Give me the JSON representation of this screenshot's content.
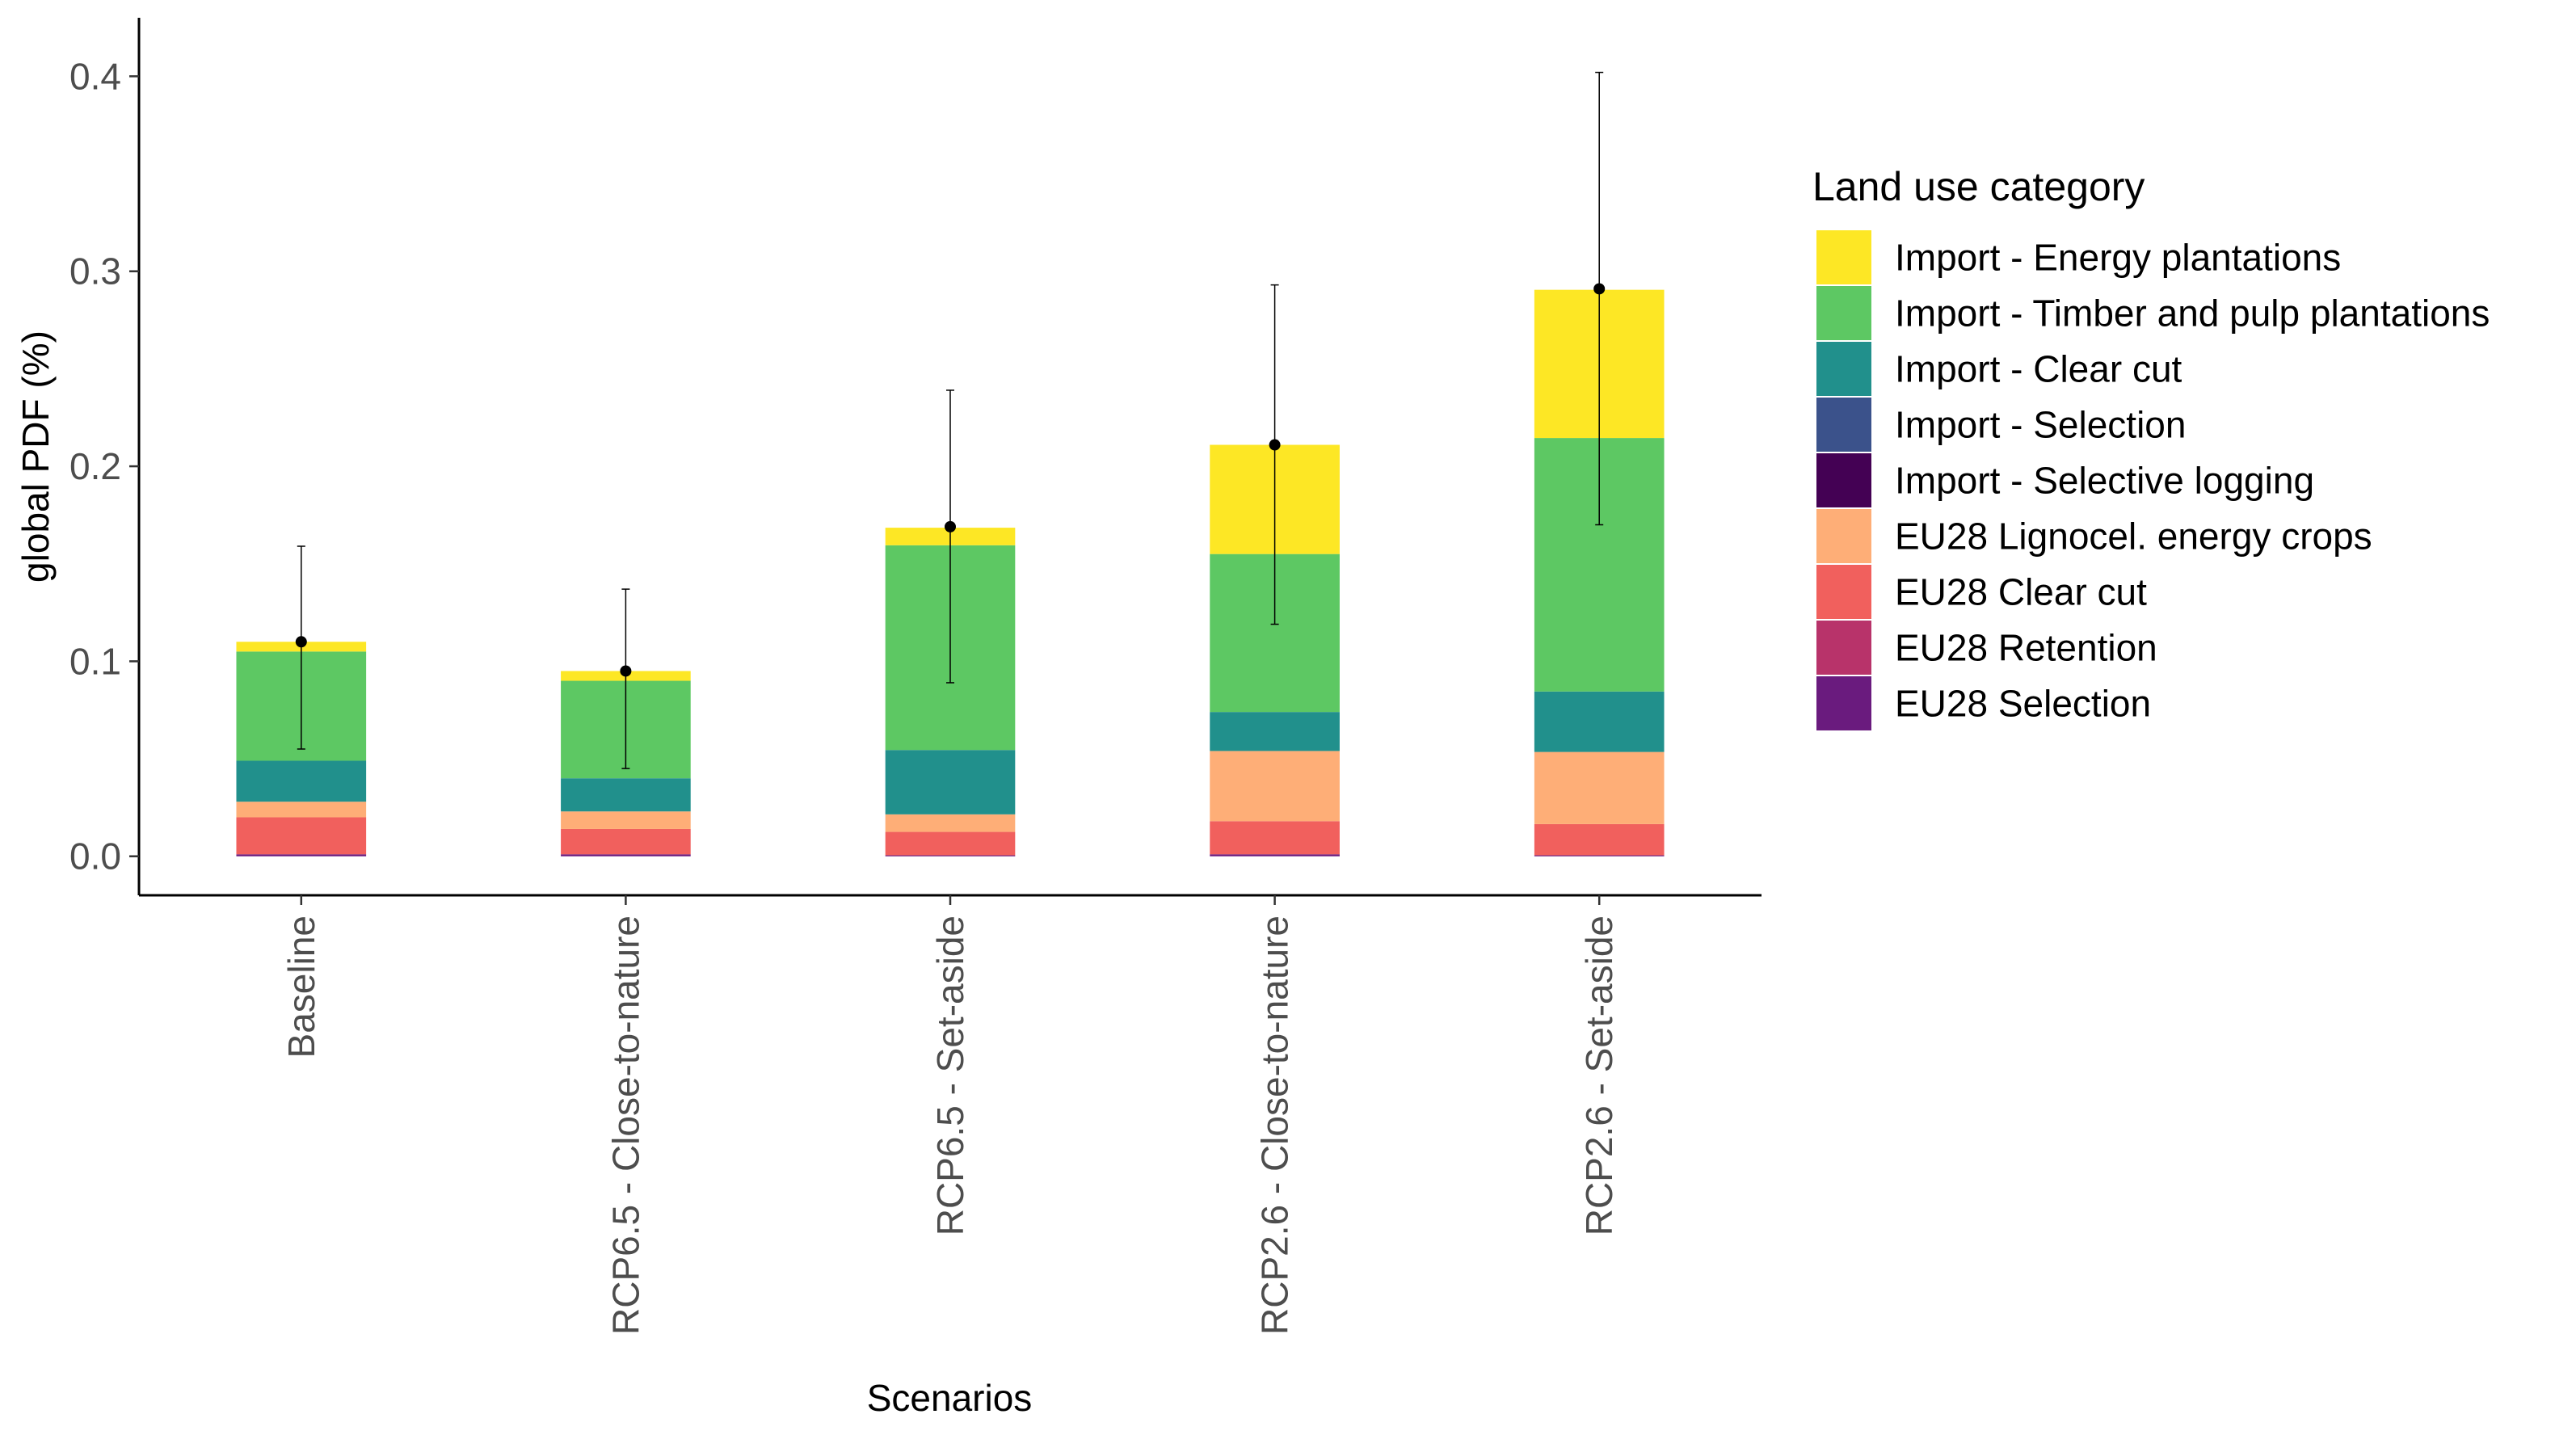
{
  "chart_data": {
    "type": "bar",
    "stacked": true,
    "categories": [
      "Baseline",
      "RCP6.5 - Close-to-nature",
      "RCP6.5 - Set-aside",
      "RCP2.6 - Close-to-nature",
      "RCP2.6 - Set-aside"
    ],
    "xlabel": "Scenarios",
    "ylabel": "global PDF (%)",
    "ylim": [
      -0.02,
      0.43
    ],
    "yticks": [
      0.0,
      0.1,
      0.2,
      0.3,
      0.4
    ],
    "ytick_labels": [
      "0.0",
      "0.1",
      "0.2",
      "0.3",
      "0.4"
    ],
    "grid": false,
    "legend": {
      "title": "Land use category",
      "position": "right"
    },
    "series": [
      {
        "name": "EU28 Selection",
        "color": "#6a1b7e",
        "values": [
          0.001,
          0.001,
          0.0005,
          0.001,
          0.0005
        ]
      },
      {
        "name": "EU28 Retention",
        "color": "#b8336a",
        "values": [
          0.0,
          0.0,
          0.0,
          0.0,
          0.0
        ]
      },
      {
        "name": "EU28 Clear cut",
        "color": "#f1605d",
        "values": [
          0.019,
          0.013,
          0.012,
          0.017,
          0.016
        ]
      },
      {
        "name": "EU28 Lignocel. energy crops",
        "color": "#feae77",
        "values": [
          0.008,
          0.009,
          0.009,
          0.036,
          0.037
        ]
      },
      {
        "name": "Import - Selective logging",
        "color": "#440154",
        "values": [
          0.0,
          0.0,
          0.0,
          0.0,
          0.0
        ]
      },
      {
        "name": "Import - Selection",
        "color": "#3b528b",
        "values": [
          0.0,
          0.0,
          0.0,
          0.0,
          0.0
        ]
      },
      {
        "name": "Import - Clear cut",
        "color": "#21908c",
        "values": [
          0.021,
          0.017,
          0.033,
          0.02,
          0.031
        ]
      },
      {
        "name": "Import - Timber and pulp plantations",
        "color": "#5dc863",
        "values": [
          0.056,
          0.05,
          0.105,
          0.081,
          0.13
        ]
      },
      {
        "name": "Import - Energy plantations",
        "color": "#fde725",
        "values": [
          0.005,
          0.005,
          0.009,
          0.056,
          0.076
        ]
      }
    ],
    "legend_order": [
      "Import - Energy plantations",
      "Import - Timber and pulp plantations",
      "Import - Clear cut",
      "Import - Selection",
      "Import - Selective logging",
      "EU28 Lignocel. energy crops",
      "EU28 Clear cut",
      "EU28 Retention",
      "EU28 Selection"
    ],
    "error_bars": {
      "mean": [
        0.11,
        0.095,
        0.169,
        0.211,
        0.291
      ],
      "lower": [
        0.055,
        0.045,
        0.089,
        0.119,
        0.17
      ],
      "upper": [
        0.159,
        0.137,
        0.239,
        0.293,
        0.402
      ]
    }
  }
}
